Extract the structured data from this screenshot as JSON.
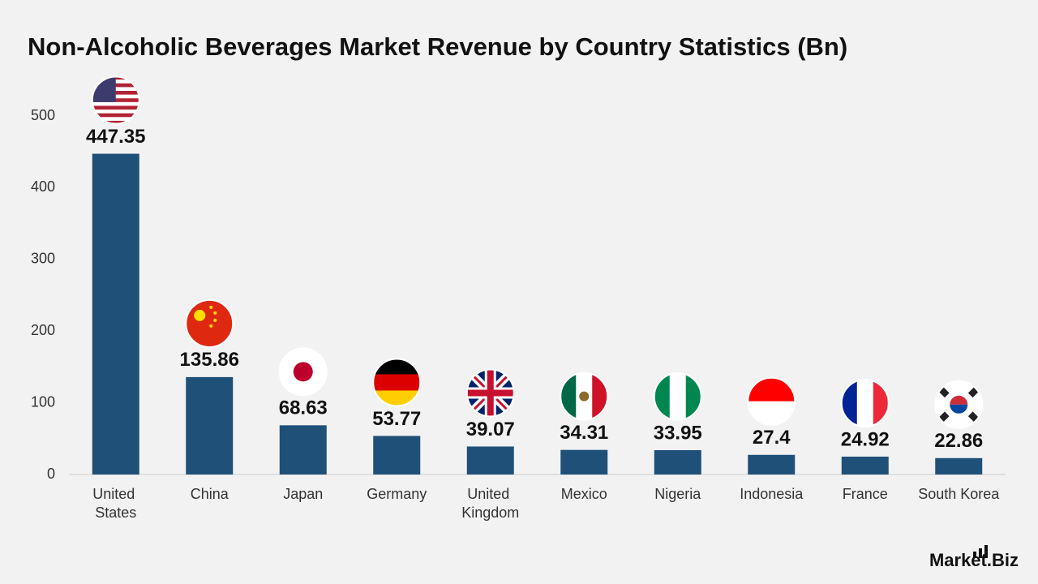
{
  "chart_data": {
    "type": "bar",
    "title": "Non-Alcoholic Beverages Market Revenue by Country Statistics (Bn)",
    "categories": [
      "United States",
      "China",
      "Japan",
      "Germany",
      "United Kingdom",
      "Mexico",
      "Nigeria",
      "Indonesia",
      "France",
      "South Korea"
    ],
    "values": [
      447.35,
      135.86,
      68.63,
      53.77,
      39.07,
      34.31,
      33.95,
      27.4,
      24.92,
      22.86
    ],
    "color": "#1f5078",
    "ylim": [
      0,
      500
    ],
    "yticks": [
      0,
      100,
      200,
      300,
      400,
      500
    ],
    "grid": false
  },
  "logo": "Market.Biz"
}
